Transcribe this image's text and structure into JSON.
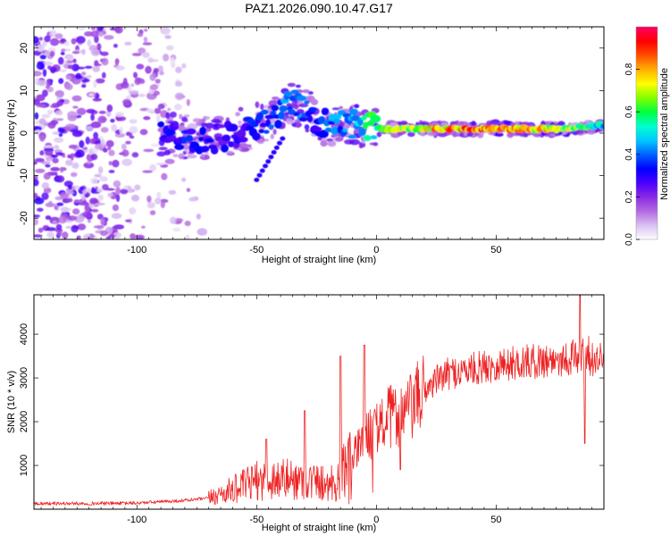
{
  "chart_data": [
    {
      "type": "heatmap",
      "title": "PAZ1.2026.090.10.47.G17",
      "xlabel": "Height of straight line (km)",
      "ylabel": "Frequency (Hz)",
      "xlim": [
        -143,
        95
      ],
      "ylim": [
        -25,
        25
      ],
      "xticks": [
        -100,
        -50,
        0,
        50
      ],
      "yticks": [
        -20,
        -10,
        0,
        10,
        20
      ],
      "colorbar": {
        "label": "Normalized spectral amplitude",
        "range": [
          0,
          1
        ],
        "ticks": [
          "0.0",
          "0.2",
          "0.4",
          "0.6",
          "0.8"
        ],
        "tick_values": [
          0,
          0.2,
          0.4,
          0.6,
          0.8
        ],
        "colors": [
          "#ffffff",
          "#d9c2f2",
          "#b56be0",
          "#8a2be2",
          "#4b00ff",
          "#0000ff",
          "#0060ff",
          "#00c8ff",
          "#00ffd0",
          "#00ff40",
          "#80ff00",
          "#ffff00",
          "#ffb000",
          "#ff5000",
          "#ff0000",
          "#ff0060"
        ]
      },
      "ridge": {
        "x": [
          -90,
          -80,
          -70,
          -60,
          -50,
          -40,
          -35,
          -30,
          -25,
          -20,
          -15,
          -10,
          -5,
          0,
          10,
          20,
          30,
          40,
          50,
          60,
          70,
          80,
          88,
          95
        ],
        "freq": [
          0,
          -1,
          -2,
          0,
          2,
          5,
          7,
          6,
          3,
          2,
          3,
          2,
          2,
          1,
          1,
          1,
          1,
          1,
          1,
          1,
          1,
          1,
          1.5,
          2
        ],
        "amplitude": [
          0.3,
          0.35,
          0.3,
          0.3,
          0.35,
          0.4,
          0.45,
          0.4,
          0.35,
          0.4,
          0.45,
          0.5,
          0.55,
          0.6,
          0.7,
          0.75,
          0.85,
          0.9,
          0.9,
          0.85,
          0.8,
          0.7,
          0.6,
          0.5
        ]
      }
    },
    {
      "type": "line",
      "xlabel": "Height of straight line (km)",
      "ylabel": "SNR (10 * v/v)",
      "xlim": [
        -143,
        95
      ],
      "ylim": [
        0,
        4900
      ],
      "xticks": [
        -100,
        -50,
        0,
        50
      ],
      "yticks": [
        1000,
        2000,
        3000,
        4000
      ],
      "series": [
        {
          "name": "SNR",
          "color": "#ee2222",
          "x": [
            -143,
            -120,
            -100,
            -80,
            -70,
            -60,
            -50,
            -40,
            -30,
            -20,
            -15,
            -10,
            -5,
            0,
            5,
            10,
            15,
            20,
            25,
            30,
            40,
            50,
            60,
            70,
            80,
            85,
            88,
            90,
            95
          ],
          "y": [
            130,
            130,
            140,
            200,
            250,
            450,
            650,
            700,
            650,
            600,
            800,
            1150,
            1600,
            1850,
            2100,
            2150,
            2350,
            2700,
            2950,
            3100,
            3200,
            3300,
            3350,
            3400,
            3450,
            3500,
            3600,
            3400,
            3500
          ],
          "spikes": [
            {
              "x": -46,
              "y": 1600
            },
            {
              "x": -30,
              "y": 2250
            },
            {
              "x": -15,
              "y": 3500
            },
            {
              "x": -5,
              "y": 3750
            },
            {
              "x": 10,
              "y": 900
            },
            {
              "x": 85,
              "y": 4900
            },
            {
              "x": 87,
              "y": 1500
            }
          ]
        }
      ]
    }
  ]
}
